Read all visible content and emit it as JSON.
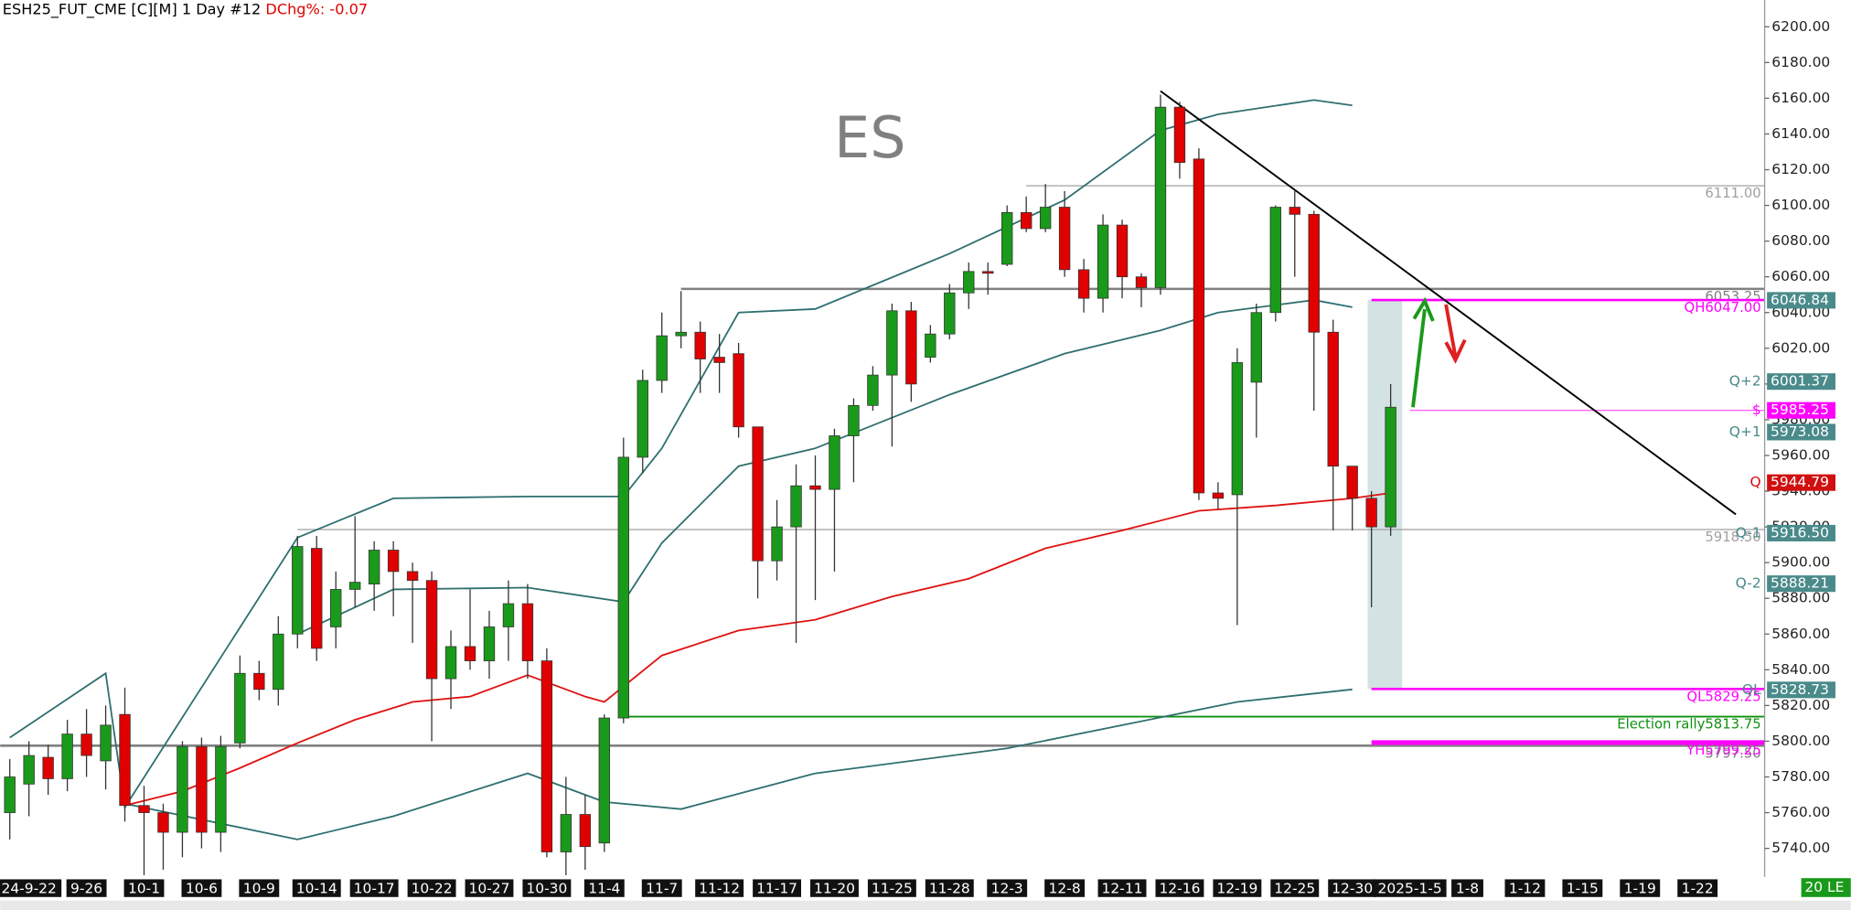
{
  "chart_data": {
    "type": "candlestick",
    "title": "ESH25_FUT_CME [C][M]  1 Day #12",
    "subtitle": "DChg%: -0.07",
    "watermark": "ES",
    "corner_tag": "20 LE",
    "categories": [
      null,
      "24-9-22",
      null,
      null,
      "9-26",
      null,
      null,
      "10-1",
      null,
      null,
      "10-6",
      null,
      null,
      "10-9",
      null,
      null,
      "10-14",
      null,
      null,
      "10-17",
      null,
      null,
      "10-22",
      null,
      null,
      "10-27",
      null,
      null,
      "10-30",
      null,
      null,
      "11-4",
      null,
      null,
      "11-7",
      null,
      null,
      "11-12",
      null,
      null,
      "11-17",
      null,
      null,
      "11-20",
      null,
      null,
      "11-25",
      null,
      null,
      "11-28",
      null,
      null,
      "12-3",
      null,
      null,
      "12-8",
      null,
      null,
      "12-11",
      null,
      null,
      "12-16",
      null,
      null,
      "12-19",
      null,
      null,
      "12-25",
      null,
      null,
      "12-30",
      null,
      null,
      "2025-1-5",
      null,
      null,
      "1-8",
      null,
      null,
      "1-12",
      null,
      null,
      "1-15",
      null,
      null,
      "1-19",
      null,
      null,
      "1-22",
      null,
      null,
      null
    ],
    "open": [
      5760,
      5776,
      5791,
      5779,
      5804,
      5789,
      5815,
      5764,
      5760,
      5749,
      5797,
      5749,
      5799,
      5838,
      5829,
      5860,
      5908,
      5864,
      5885,
      5888,
      5907,
      5895,
      5890,
      5835,
      5853,
      5845,
      5864,
      5877,
      5845,
      5738,
      5759,
      5743,
      5813,
      5959,
      6002,
      6027,
      6029,
      6015,
      6017,
      5976,
      5901,
      5920,
      5943,
      5941,
      5971,
      5988,
      6005,
      6041,
      6015,
      6028,
      6051,
      6063,
      6067,
      6096,
      6087,
      6099,
      6064,
      6048,
      6089,
      6060,
      6054,
      6155,
      6126,
      5939,
      5938,
      6001,
      6040,
      6099,
      6095,
      6029,
      5954,
      5936,
      5920,
      null,
      null,
      null,
      null,
      null,
      null,
      null,
      null,
      null,
      null,
      null,
      null,
      null,
      null,
      null,
      null,
      null,
      null,
      null
    ],
    "high": [
      5790,
      5800,
      5798,
      5812,
      5818,
      5820,
      5830,
      5775,
      5765,
      5800,
      5802,
      5803,
      5848,
      5845,
      5870,
      5915,
      5915,
      5895,
      5926,
      5912,
      5912,
      5900,
      5895,
      5862,
      5885,
      5873,
      5890,
      5888,
      5852,
      5780,
      5770,
      5815,
      5970,
      6008,
      6040,
      6052,
      6035,
      6028,
      6023,
      5976,
      5935,
      5955,
      5960,
      5975,
      5992,
      6010,
      6045,
      6046,
      6033,
      6056,
      6068,
      6068,
      6100,
      6105,
      6112,
      6108,
      6070,
      6095,
      6092,
      6062,
      6162,
      6158,
      6132,
      5945,
      6020,
      6045,
      6100,
      6108,
      6097,
      6036,
      5954,
      5940,
      6000,
      null,
      null,
      null,
      null,
      null,
      null,
      null,
      null,
      null,
      null,
      null,
      null,
      null,
      null,
      null,
      null,
      null,
      null,
      null
    ],
    "low": [
      5745,
      5758,
      5770,
      5772,
      5780,
      5773,
      5755,
      5725,
      5728,
      5735,
      5740,
      5738,
      5796,
      5823,
      5820,
      5852,
      5845,
      5852,
      5875,
      5873,
      5870,
      5855,
      5800,
      5818,
      5840,
      5835,
      5845,
      5835,
      5735,
      5725,
      5728,
      5738,
      5810,
      5950,
      5995,
      6020,
      5995,
      5995,
      5970,
      5880,
      5890,
      5855,
      5879,
      5895,
      5945,
      5985,
      5965,
      5990,
      6012,
      6025,
      6042,
      6050,
      6066,
      6085,
      6085,
      6060,
      6040,
      6040,
      6048,
      6043,
      6050,
      6115,
      5935,
      5930,
      5865,
      5970,
      6035,
      6060,
      5985,
      5918,
      5918,
      5875,
      5915,
      null,
      null,
      null,
      null,
      null,
      null,
      null,
      null,
      null,
      null,
      null,
      null,
      null,
      null,
      null,
      null,
      null,
      null,
      null
    ],
    "close": [
      5780,
      5792,
      5779,
      5804,
      5792,
      5809,
      5764,
      5760,
      5749,
      5797,
      5749,
      5797,
      5838,
      5829,
      5860,
      5909,
      5852,
      5885,
      5889,
      5907,
      5895,
      5890,
      5835,
      5853,
      5845,
      5864,
      5877,
      5845,
      5738,
      5759,
      5741,
      5813,
      5959,
      6002,
      6027,
      6029,
      6014,
      6012,
      5976,
      5901,
      5920,
      5943,
      5941,
      5971,
      5988,
      6005,
      6041,
      6000,
      6028,
      6051,
      6063,
      6062,
      6096,
      6087,
      6099,
      6064,
      6048,
      6089,
      6060,
      6054,
      6155,
      6124,
      5939,
      5936,
      6012,
      6040,
      6099,
      6095,
      6029,
      5954,
      5936,
      5920,
      5987,
      null,
      null,
      null,
      null,
      null,
      null,
      null,
      null,
      null,
      null,
      null,
      null,
      null,
      null,
      null,
      null,
      null,
      null,
      null
    ],
    "up_color": "#1a9a1a",
    "down_color": "#e00000",
    "series": [
      {
        "color": "#2f6f6f",
        "x": [
          0,
          5,
          6,
          15,
          20,
          27,
          32,
          34,
          38,
          42,
          49,
          55,
          60,
          63,
          68,
          70
        ],
        "values": [
          5802,
          5838,
          5763,
          5914,
          5936,
          5937,
          5937,
          5964,
          6040,
          6042,
          6073,
          6103,
          6142,
          6151,
          6159,
          6156
        ]
      },
      {
        "color": "#2f6f6f",
        "x": [
          15,
          20,
          27,
          32,
          34,
          38,
          42,
          49,
          55,
          60,
          63,
          68,
          70
        ],
        "values": [
          5860,
          5885,
          5886,
          5878,
          5911,
          5954,
          5964,
          5994,
          6017,
          6030,
          6040,
          6047,
          6043
        ]
      },
      {
        "color": "#2f6f6f",
        "x": [
          6,
          15,
          20,
          27,
          31,
          35,
          42,
          52,
          58,
          64,
          70
        ],
        "values": [
          5765,
          5745,
          5758,
          5782,
          5766,
          5762,
          5782,
          5796,
          5809,
          5822,
          5829
        ]
      },
      {
        "color": "#e01010",
        "x": [
          6,
          9,
          12,
          15,
          18,
          21,
          24,
          27,
          30,
          31,
          34,
          38,
          42,
          46,
          50,
          54,
          58,
          62,
          66,
          70,
          72
        ],
        "values": [
          5764,
          5772,
          5785,
          5799,
          5812,
          5822,
          5825,
          5837,
          5825,
          5822,
          5848,
          5862,
          5868,
          5881,
          5891,
          5908,
          5918,
          5929,
          5932,
          5936,
          5939
        ]
      }
    ],
    "trendline": {
      "color": "#000000",
      "x": [
        60,
        90
      ],
      "values": [
        6164,
        5927
      ]
    },
    "levels": [
      {
        "value": 6111,
        "label": "6111.00",
        "color": "#a0a0a0",
        "x": 53,
        "width": 1
      },
      {
        "value": 6053.25,
        "label": "6053.25",
        "color": "#808080",
        "x": 35,
        "width": 2
      },
      {
        "value": 5918.5,
        "label": "5918.50",
        "color": "#a0a0a0",
        "x": 15,
        "width": 1
      },
      {
        "value": 5813.75,
        "tag": "Election rally",
        "label": "5813.75",
        "color": "#109010",
        "x": 32,
        "width": 1.5
      },
      {
        "value": 5797.5,
        "label": "5797.50",
        "color": "#808080",
        "x": -0.5,
        "width": 2
      },
      {
        "value": 6047,
        "tag": "QH",
        "label": "6047.00",
        "color": "#ff00ff",
        "x": 71,
        "width": 2
      },
      {
        "value": 5829.25,
        "tag": "QL",
        "label": "5829.25",
        "color": "#ff00ff",
        "x": 71,
        "width": 2
      },
      {
        "value": 5799.25,
        "tag": "YH",
        "label": "5799.25",
        "color": "#ff00ff",
        "x": 71,
        "width": 4
      },
      {
        "value": 5985.25,
        "color": "#ff66ff",
        "x": 73,
        "width": 1
      }
    ],
    "markers": [
      {
        "value": 6046.84,
        "label": "6046.84",
        "color": "#4a8a8a"
      },
      {
        "value": 6001.37,
        "tag": "Q+2",
        "label": "6001.37",
        "color": "#4a8a8a"
      },
      {
        "value": 5985.25,
        "tag": "$",
        "label": "5985.25",
        "color": "#ff00ff"
      },
      {
        "value": 5973.08,
        "tag": "Q+1",
        "label": "5973.08",
        "color": "#4a8a8a"
      },
      {
        "value": 5944.79,
        "tag": "Q",
        "label": "5944.79",
        "color": "#d01010"
      },
      {
        "value": 5916.5,
        "tag": "Q-1",
        "label": "5916.50",
        "color": "#4a8a8a"
      },
      {
        "value": 5888.21,
        "tag": "Q-2",
        "label": "5888.21",
        "color": "#4a8a8a"
      },
      {
        "value": 5828.73,
        "tag": "QL",
        "label": "5828.73",
        "color": "#4a8a8a"
      }
    ],
    "ylim": [
      5724,
      6215
    ],
    "yticks": [
      {
        "value": 5740,
        "label": "5740.00"
      },
      {
        "value": 5760,
        "label": "5760.00"
      },
      {
        "value": 5780,
        "label": "5780.00"
      },
      {
        "value": 5800,
        "label": "5800.00"
      },
      {
        "value": 5820,
        "label": "5820.00"
      },
      {
        "value": 5840,
        "label": "5840.00"
      },
      {
        "value": 5860,
        "label": "5860.00"
      },
      {
        "value": 5880,
        "label": "5880.00"
      },
      {
        "value": 5900,
        "label": "5900.00"
      },
      {
        "value": 5920,
        "label": "5920.00"
      },
      {
        "value": 5940,
        "label": "5940.00"
      },
      {
        "value": 5960,
        "label": "5960.00"
      },
      {
        "value": 5980,
        "label": "5980.00"
      },
      {
        "value": 6000,
        "label": "6000.00"
      },
      {
        "value": 6020,
        "label": "6020.00"
      },
      {
        "value": 6040,
        "label": "6040.00"
      },
      {
        "value": 6060,
        "label": "6060.00"
      },
      {
        "value": 6080,
        "label": "6080.00"
      },
      {
        "value": 6100,
        "label": "6100.00"
      },
      {
        "value": 6120,
        "label": "6120.00"
      },
      {
        "value": 6140,
        "label": "6140.00"
      },
      {
        "value": 6160,
        "label": "6160.00"
      },
      {
        "value": 6180,
        "label": "6180.00"
      },
      {
        "value": 6200,
        "label": "6200.00"
      }
    ]
  }
}
